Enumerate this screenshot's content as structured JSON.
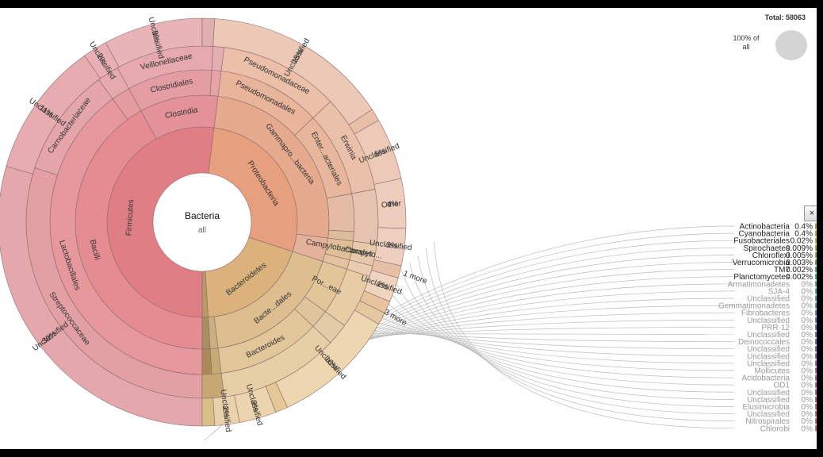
{
  "total": {
    "label": "Total: 58063",
    "pct_text": "100% of\nall"
  },
  "close_label": "×",
  "chart_data": {
    "type": "sunburst",
    "root": {
      "name": "Bacteria",
      "value_text": "all"
    },
    "rings": [
      [
        {
          "name": "Firmicutes",
          "value": 52,
          "color": "#e07e86"
        },
        {
          "name": "Proteobacteria",
          "value": 28,
          "color": "#e6a07e"
        },
        {
          "name": "Bacteroidetes",
          "value": 19,
          "color": "#dcb27c"
        },
        {
          "name": "",
          "value": 1,
          "color": "#b89a66"
        }
      ],
      [
        {
          "name": "Bacilli",
          "value": 42,
          "color": "#e48c92"
        },
        {
          "name": "Clostridia",
          "value": 10,
          "color": "#e29298"
        },
        {
          "name": "Gammapro...bacteria",
          "value": 25,
          "color": "#e6ab8e"
        },
        {
          "name": "",
          "value": 3,
          "color": "#e4b29a"
        },
        {
          "name": "Bacte...dales",
          "value": 18,
          "color": "#ddbe8f"
        },
        {
          "name": "",
          "value": 1,
          "color": "#c8b080"
        },
        {
          "name": "",
          "value": 1,
          "color": "#a88f60"
        }
      ],
      [
        {
          "name": "Lactobacillales",
          "value": 40,
          "color": "#e7989d"
        },
        {
          "name": "",
          "value": 2,
          "color": "#e59ca1"
        },
        {
          "name": "Clostridiales",
          "value": 9,
          "color": "#e49da3"
        },
        {
          "name": "",
          "value": 1,
          "color": "#e4a4a8"
        },
        {
          "name": "Pseudomonadales",
          "value": 11,
          "color": "#e8b49a"
        },
        {
          "name": "Enter...acteriales",
          "value": 9,
          "color": "#e8b69c"
        },
        {
          "name": "",
          "value": 4,
          "color": "#e4bca6"
        },
        {
          "name": "",
          "value": 1,
          "color": "#ddbc9c"
        },
        {
          "name": "Campylobacterales",
          "value": 2,
          "color": "#dfbf96"
        },
        {
          "name": "",
          "value": 1,
          "color": "#e2c29f"
        },
        {
          "name": "Por...eae",
          "value": 5,
          "color": "#e2c699"
        },
        {
          "name": "",
          "value": 2,
          "color": "#dec59c"
        },
        {
          "name": "Bacteroides",
          "value": 11,
          "color": "#e2c79a"
        },
        {
          "name": "",
          "value": 1,
          "color": "#c6ab74"
        },
        {
          "name": "",
          "value": 1,
          "color": "#a98a58"
        }
      ],
      [
        {
          "name": "Streptococcaceae",
          "value": 30,
          "color": "#e3a0a4"
        },
        {
          "name": "Carnobacteriaceae",
          "value": 10,
          "color": "#e4a6aa"
        },
        {
          "name": "",
          "value": 2,
          "color": "#e6aaae"
        },
        {
          "name": "Veillonellaceae",
          "value": 9,
          "color": "#e6aaae"
        },
        {
          "name": "",
          "value": 1,
          "color": "#e4afb2"
        },
        {
          "name": "Pseudomonadaceae",
          "value": 11,
          "color": "#ebbfa8"
        },
        {
          "name": "Erwinia",
          "value": 9,
          "color": "#ebc0aa"
        },
        {
          "name": "",
          "value": 5,
          "color": "#e6c3b0"
        },
        {
          "name": "Campylo...",
          "value": 2,
          "color": "#e6c9a8"
        },
        {
          "name": "",
          "value": 1,
          "color": "#e8cdb0"
        },
        {
          "name": "",
          "value": 5,
          "color": "#e6cda6"
        },
        {
          "name": "",
          "value": 2,
          "color": "#e2cba6"
        },
        {
          "name": "",
          "value": 11,
          "color": "#e6cfa6"
        },
        {
          "name": "",
          "value": 2,
          "color": "#c5a872"
        }
      ],
      [
        {
          "name": "Unclassified",
          "value": 30,
          "color": "#e4a8ac"
        },
        {
          "name": "Unclassified",
          "value": 11,
          "color": "#e6acb0"
        },
        {
          "name": "Unclassified",
          "value": 2,
          "color": "#e8b0b4"
        },
        {
          "name": "Unclassified",
          "value": 8,
          "color": "#e8b4b8"
        },
        {
          "name": "",
          "value": 1,
          "color": "#e0b0b0"
        },
        {
          "name": "Unclassified",
          "value": 15,
          "color": "#ecc8b6"
        },
        {
          "name": "",
          "value": 1,
          "color": "#e8c0aa"
        },
        {
          "name": "Unclassified",
          "value": 5,
          "color": "#edcab8"
        },
        {
          "name": "Other",
          "value": 4,
          "color": "#eecdbc"
        },
        {
          "name": "Unclassified",
          "value": 3,
          "color": "#efd0be"
        },
        {
          "name": "",
          "value": 1,
          "color": "#e6c0a4"
        },
        {
          "name": "Unclassified",
          "value": 2,
          "color": "#efd4bf"
        },
        {
          "name": "",
          "value": 1,
          "color": "#e8c49e"
        },
        {
          "name": "",
          "value": 1,
          "color": "#e6c89e"
        },
        {
          "name": "Unclassified",
          "value": 10,
          "color": "#eed6b0"
        },
        {
          "name": "",
          "value": 1,
          "color": "#e4c896"
        },
        {
          "name": "Unclassified",
          "value": 3,
          "color": "#ecd4ae"
        },
        {
          "name": "Unclassified",
          "value": 2,
          "color": "#e9d2ab"
        },
        {
          "name": "",
          "value": 1,
          "color": "#d9bf88"
        }
      ]
    ],
    "percent_labels": [
      {
        "text": "30%",
        "ring": 4,
        "segment": 0
      },
      {
        "text": "11%",
        "ring": 4,
        "segment": 1
      },
      {
        "text": "2%",
        "ring": 4,
        "segment": 2
      },
      {
        "text": "8%",
        "ring": 4,
        "segment": 3
      },
      {
        "text": "15%",
        "ring": 4,
        "segment": 5
      },
      {
        "text": "5%",
        "ring": 4,
        "segment": 7
      },
      {
        "text": "4%",
        "ring": 4,
        "segment": 8
      },
      {
        "text": "3%",
        "ring": 4,
        "segment": 9
      },
      {
        "text": "2%",
        "ring": 4,
        "segment": 11
      },
      {
        "text": "10%",
        "ring": 4,
        "segment": 14
      },
      {
        "text": "3%",
        "ring": 4,
        "segment": 16
      },
      {
        "text": "2%",
        "ring": 4,
        "segment": 17
      }
    ],
    "more_labels": [
      "1 more",
      "3 more"
    ],
    "legend": [
      {
        "name": "Actinobacteria",
        "value": "0.4%",
        "color": "#c8964a",
        "highlight": true
      },
      {
        "name": "Cyanobacteria",
        "value": "0.4%",
        "color": "#c8a840",
        "highlight": true
      },
      {
        "name": "Fusobacteriales",
        "value": "0.02%",
        "color": "#b8b83c",
        "highlight": true
      },
      {
        "name": "Spirochaetes",
        "value": "0.009%",
        "color": "#98b840",
        "highlight": true
      },
      {
        "name": "Chloroflexi",
        "value": "0.005%",
        "color": "#78b448",
        "highlight": true
      },
      {
        "name": "Verrucomicrobia",
        "value": "0.003%",
        "color": "#5cb054",
        "highlight": true
      },
      {
        "name": "TM7",
        "value": "0.002%",
        "color": "#50ae68",
        "highlight": true
      },
      {
        "name": "Planctomycetes",
        "value": "0.002%",
        "color": "#48ac80",
        "highlight": true
      },
      {
        "name": "Armatimonadetes",
        "value": "0%",
        "color": "#48ac98",
        "highlight": false
      },
      {
        "name": "SJA-4",
        "value": "0%",
        "color": "#4aa8ae",
        "highlight": false
      },
      {
        "name": "Unclassified",
        "value": "0%",
        "color": "#4ca0c0",
        "highlight": false
      },
      {
        "name": "Gemmatimonadetes",
        "value": "0%",
        "color": "#5094cc",
        "highlight": false
      },
      {
        "name": "Fibrobacteres",
        "value": "0%",
        "color": "#5688d4",
        "highlight": false
      },
      {
        "name": "Unclassified",
        "value": "0%",
        "color": "#5e7cd8",
        "highlight": false
      },
      {
        "name": "PRR-12",
        "value": "0%",
        "color": "#6672da",
        "highlight": false
      },
      {
        "name": "Unclassified",
        "value": "0%",
        "color": "#706ad8",
        "highlight": false
      },
      {
        "name": "Deinococcales",
        "value": "0%",
        "color": "#7c64d6",
        "highlight": false
      },
      {
        "name": "Unclassified",
        "value": "0%",
        "color": "#8860d2",
        "highlight": false
      },
      {
        "name": "Unclassified",
        "value": "0%",
        "color": "#9460ce",
        "highlight": false
      },
      {
        "name": "Unclassified",
        "value": "0%",
        "color": "#a05ec8",
        "highlight": false
      },
      {
        "name": "Mollicutes",
        "value": "0%",
        "color": "#ac5cc2",
        "highlight": false
      },
      {
        "name": "Acidobacteria",
        "value": "0%",
        "color": "#b65cb8",
        "highlight": false
      },
      {
        "name": "OD1",
        "value": "0%",
        "color": "#c05cae",
        "highlight": false
      },
      {
        "name": "Unclassified",
        "value": "0%",
        "color": "#c85ca2",
        "highlight": false
      },
      {
        "name": "Unclassified",
        "value": "0%",
        "color": "#ce5e96",
        "highlight": false
      },
      {
        "name": "Elusimicrobia",
        "value": "0%",
        "color": "#d2608a",
        "highlight": false
      },
      {
        "name": "Unclassified",
        "value": "0%",
        "color": "#d4647e",
        "highlight": false
      },
      {
        "name": "Nitrospirales",
        "value": "0%",
        "color": "#d66874",
        "highlight": false
      },
      {
        "name": "Chlorobi",
        "value": "0%",
        "color": "#d66c6c",
        "highlight": false
      }
    ]
  }
}
